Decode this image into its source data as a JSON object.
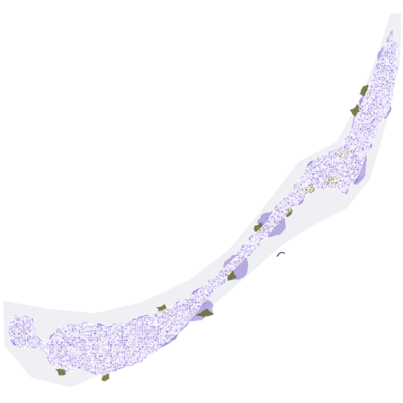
{
  "image": {
    "background_color": "#ffffff",
    "halo_color": "#eceef3",
    "tissue_color": "#a58ee0",
    "tissue_dark_color": "#8a72cf",
    "tissue_light_color": "#c3b4ee",
    "stroma_color": "#6b6a2e"
  }
}
